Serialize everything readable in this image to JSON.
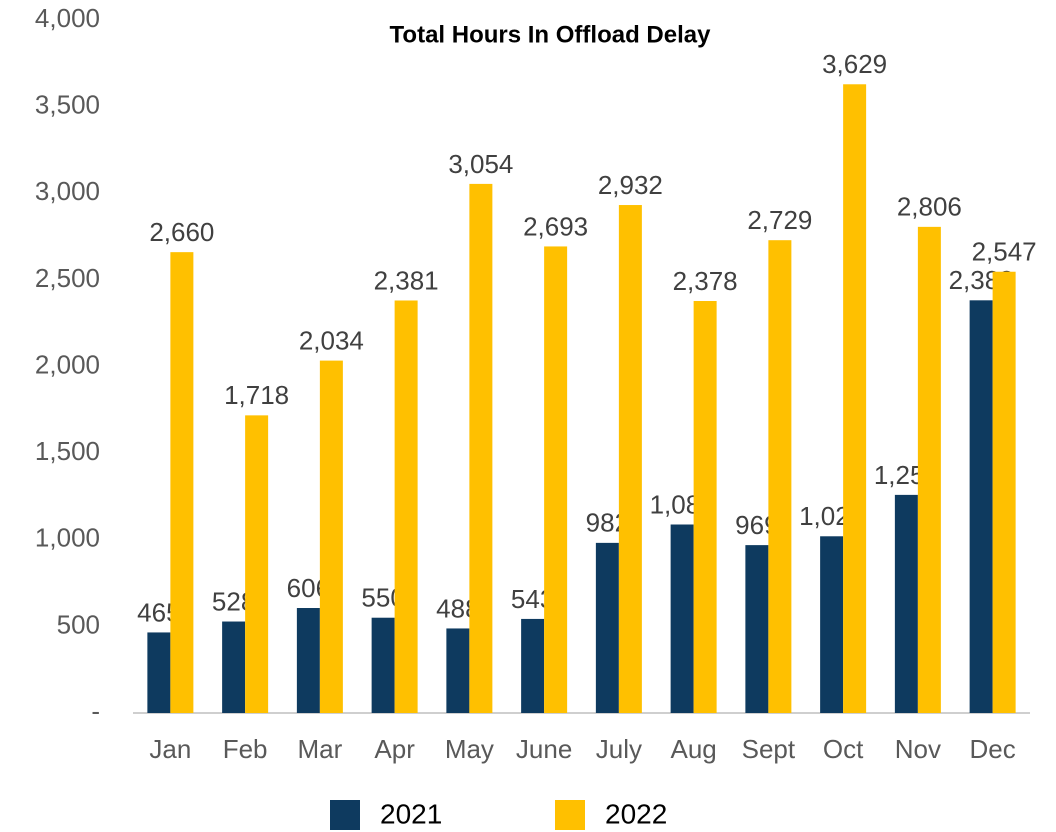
{
  "chart_data": {
    "type": "bar",
    "title": "Total Hours In Offload Delay",
    "categories": [
      "Jan",
      "Feb",
      "Mar",
      "Apr",
      "May",
      "June",
      "July",
      "Aug",
      "Sept",
      "Oct",
      "Nov",
      "Dec"
    ],
    "series": [
      {
        "name": "2021",
        "color": "#0e3a5f",
        "values": [
          465,
          528,
          606,
          550,
          488,
          543,
          982,
          1088,
          969,
          1020,
          1259,
          2382
        ],
        "value_labels": [
          "465",
          "528",
          "606",
          "550",
          "488",
          "543",
          "982",
          "1,088",
          "969",
          "1,020",
          "1,259",
          "2,382"
        ]
      },
      {
        "name": "2022",
        "color": "#ffc000",
        "values": [
          2660,
          1718,
          2034,
          2381,
          3054,
          2693,
          2932,
          2378,
          2729,
          3629,
          2806,
          2547
        ],
        "value_labels": [
          "2,660",
          "1,718",
          "2,034",
          "2,381",
          "3,054",
          "2,693",
          "2,932",
          "2,378",
          "2,729",
          "3,629",
          "2,806",
          "2,547"
        ]
      }
    ],
    "ylim": [
      0,
      4000
    ],
    "yticks": [
      {
        "value": 0,
        "label": "-"
      },
      500,
      {
        "value": 1000,
        "label": "1,000"
      },
      {
        "value": 1500,
        "label": "1,500"
      },
      {
        "value": 2000,
        "label": "2,000"
      },
      {
        "value": 2500,
        "label": "2,500"
      },
      {
        "value": 3000,
        "label": "3,000"
      },
      {
        "value": 3500,
        "label": "3,500"
      },
      {
        "value": 4000,
        "label": "4,000"
      }
    ],
    "grid": false,
    "legend": "bottom"
  }
}
